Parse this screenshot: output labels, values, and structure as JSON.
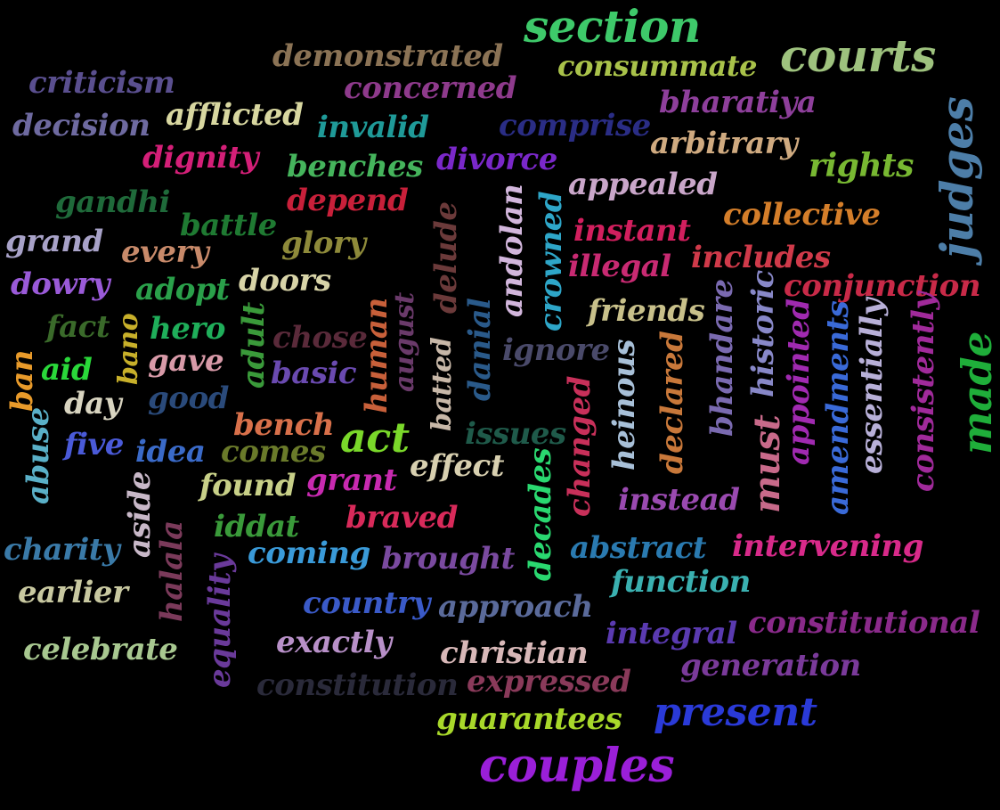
{
  "words": [
    {
      "text": "section",
      "color": "#3ec96a"
    },
    {
      "text": "demonstrated",
      "color": "#8b7355"
    },
    {
      "text": "consummate",
      "color": "#a9c24a"
    },
    {
      "text": "courts",
      "color": "#9ec27e"
    },
    {
      "text": "criticism",
      "color": "#5a4f8f"
    },
    {
      "text": "concerned",
      "color": "#8e3a8c"
    },
    {
      "text": "bharatiya",
      "color": "#8e3f9b"
    },
    {
      "text": "decision",
      "color": "#6e6aa0"
    },
    {
      "text": "afflicted",
      "color": "#d8d7a0"
    },
    {
      "text": "invalid",
      "color": "#1f9a98"
    },
    {
      "text": "comprise",
      "color": "#2a2d85"
    },
    {
      "text": "arbitrary",
      "color": "#cfaa80"
    },
    {
      "text": "judges",
      "color": "#4d7ea8"
    },
    {
      "text": "dignity",
      "color": "#d41f78"
    },
    {
      "text": "benches",
      "color": "#45b45c"
    },
    {
      "text": "divorce",
      "color": "#7a28c9"
    },
    {
      "text": "rights",
      "color": "#78b832"
    },
    {
      "text": "gandhi",
      "color": "#1f6a3a"
    },
    {
      "text": "depend",
      "color": "#c8203a"
    },
    {
      "text": "appealed",
      "color": "#c9a6c9"
    },
    {
      "text": "collective",
      "color": "#d47e2a"
    },
    {
      "text": "battle",
      "color": "#1f7a32"
    },
    {
      "text": "grand",
      "color": "#a8a2c8"
    },
    {
      "text": "every",
      "color": "#c88a6a"
    },
    {
      "text": "glory",
      "color": "#8e8a3a"
    },
    {
      "text": "delude",
      "color": "#6b3a3a"
    },
    {
      "text": "andolan",
      "color": "#d2b6dc"
    },
    {
      "text": "crowned",
      "color": "#2ea6c8"
    },
    {
      "text": "instant",
      "color": "#d21f5e"
    },
    {
      "text": "illegal",
      "color": "#c82a72"
    },
    {
      "text": "includes",
      "color": "#d03a4a"
    },
    {
      "text": "dowry",
      "color": "#9a5ad8"
    },
    {
      "text": "adopt",
      "color": "#2aa04a"
    },
    {
      "text": "doors",
      "color": "#d8d4a8"
    },
    {
      "text": "conjunction",
      "color": "#c82a48"
    },
    {
      "text": "friends",
      "color": "#c8c08a"
    },
    {
      "text": "bhandare",
      "color": "#7a6ab0"
    },
    {
      "text": "historic",
      "color": "#8888c8"
    },
    {
      "text": "fact",
      "color": "#3a6a2a"
    },
    {
      "text": "bano",
      "color": "#c8b02a"
    },
    {
      "text": "hero",
      "color": "#1fae5a"
    },
    {
      "text": "chose",
      "color": "#5a2a3a"
    },
    {
      "text": "human",
      "color": "#c8603a"
    },
    {
      "text": "august",
      "color": "#6a3a6a"
    },
    {
      "text": "danial",
      "color": "#2a5a8a"
    },
    {
      "text": "appointed",
      "color": "#a02ab0"
    },
    {
      "text": "amendments",
      "color": "#3a6ad8"
    },
    {
      "text": "essentially",
      "color": "#b8b0d8"
    },
    {
      "text": "consistently",
      "color": "#a02a9a"
    },
    {
      "text": "made",
      "color": "#1fae3a"
    },
    {
      "text": "ban",
      "color": "#e89a2a"
    },
    {
      "text": "aid",
      "color": "#2ad83a"
    },
    {
      "text": "gave",
      "color": "#d89aa8"
    },
    {
      "text": "adult",
      "color": "#3a9a3a"
    },
    {
      "text": "basic",
      "color": "#6a4ab0"
    },
    {
      "text": "batted",
      "color": "#c8b8a8"
    },
    {
      "text": "ignore",
      "color": "#4a4a6a"
    },
    {
      "text": "heinous",
      "color": "#a8c0d8"
    },
    {
      "text": "declared",
      "color": "#c8783a"
    },
    {
      "text": "must",
      "color": "#c86a8a"
    },
    {
      "text": "day",
      "color": "#d8d4c0"
    },
    {
      "text": "good",
      "color": "#2a4a7a"
    },
    {
      "text": "abuse",
      "color": "#5ab0c8"
    },
    {
      "text": "bench",
      "color": "#d8704a"
    },
    {
      "text": "act",
      "color": "#7ad82a"
    },
    {
      "text": "issues",
      "color": "#1f5a4a"
    },
    {
      "text": "changed",
      "color": "#c8305a"
    },
    {
      "text": "five",
      "color": "#4a5ad8"
    },
    {
      "text": "idea",
      "color": "#3a6ac8"
    },
    {
      "text": "comes",
      "color": "#6a7a2a"
    },
    {
      "text": "effect",
      "color": "#d8d0b0"
    },
    {
      "text": "aside",
      "color": "#c8b8c8"
    },
    {
      "text": "found",
      "color": "#c8d088"
    },
    {
      "text": "grant",
      "color": "#c82ab0"
    },
    {
      "text": "decades",
      "color": "#2ad870"
    },
    {
      "text": "instead",
      "color": "#9a4ab0"
    },
    {
      "text": "iddat",
      "color": "#3a9a3a"
    },
    {
      "text": "braved",
      "color": "#d82a5a"
    },
    {
      "text": "halala",
      "color": "#7a3a5a"
    },
    {
      "text": "charity",
      "color": "#3a7aa8"
    },
    {
      "text": "coming",
      "color": "#3a9ad8"
    },
    {
      "text": "brought",
      "color": "#7a4aa0"
    },
    {
      "text": "abstract",
      "color": "#2a7ab0"
    },
    {
      "text": "intervening",
      "color": "#d82a8a"
    },
    {
      "text": "equality",
      "color": "#6a3a9a"
    },
    {
      "text": "earlier",
      "color": "#c8c8a0"
    },
    {
      "text": "function",
      "color": "#3ab0b0"
    },
    {
      "text": "country",
      "color": "#3a5ac8"
    },
    {
      "text": "approach",
      "color": "#5a6a9a"
    },
    {
      "text": "constitutional",
      "color": "#8a2a8a"
    },
    {
      "text": "integral",
      "color": "#5a3ab0"
    },
    {
      "text": "celebrate",
      "color": "#a8c890"
    },
    {
      "text": "exactly",
      "color": "#b890c8"
    },
    {
      "text": "christian",
      "color": "#d8b8b8"
    },
    {
      "text": "generation",
      "color": "#7a3a9a"
    },
    {
      "text": "constitution",
      "color": "#2a2a3a"
    },
    {
      "text": "expressed",
      "color": "#8a3a5a"
    },
    {
      "text": "present",
      "color": "#2a3ad8"
    },
    {
      "text": "guarantees",
      "color": "#a8d82a"
    },
    {
      "text": "couples",
      "color": "#9a1fd8"
    }
  ]
}
